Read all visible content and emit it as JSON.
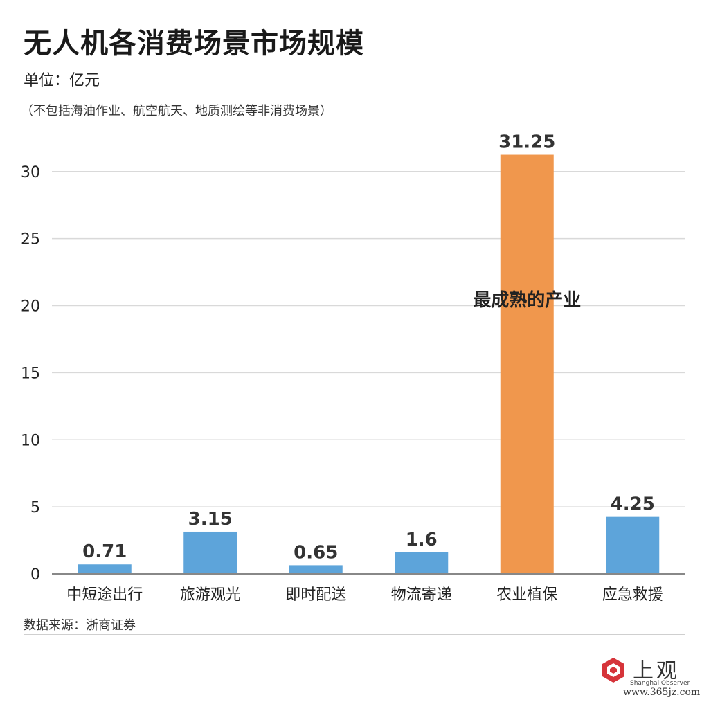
{
  "header": {
    "title": "无人机各消费场景市场规模",
    "unit": "单位：亿元",
    "note": "（不包括海油作业、航空航天、地质测绘等非消费场景）"
  },
  "footer": {
    "source": "数据来源：浙商证券"
  },
  "watermark": {
    "logo_name": "上观",
    "logo_sub": "Shanghai Observer",
    "site": "www.365jz.com"
  },
  "colors": {
    "bar": "#5da4da",
    "highlight": "#f0974d",
    "grid": "#d9d9d9",
    "axis": "#888888",
    "logo_red": "#d6343a"
  },
  "chart_data": {
    "type": "bar",
    "categories": [
      "中短途出行",
      "旅游观光",
      "即时配送",
      "物流寄递",
      "农业植保",
      "应急救援"
    ],
    "values": [
      0.71,
      3.15,
      0.65,
      1.6,
      31.25,
      4.25
    ],
    "data_labels": [
      "0.71",
      "3.15",
      "0.65",
      "1.6",
      "31.25",
      "4.25"
    ],
    "highlight_index": 4,
    "annotation": "最成熟的产业",
    "ylim": [
      0,
      32
    ],
    "yticks": [
      0,
      5,
      10,
      15,
      20,
      25,
      30
    ],
    "grid": true,
    "title": "无人机各消费场景市场规模",
    "xlabel": "",
    "ylabel": ""
  }
}
